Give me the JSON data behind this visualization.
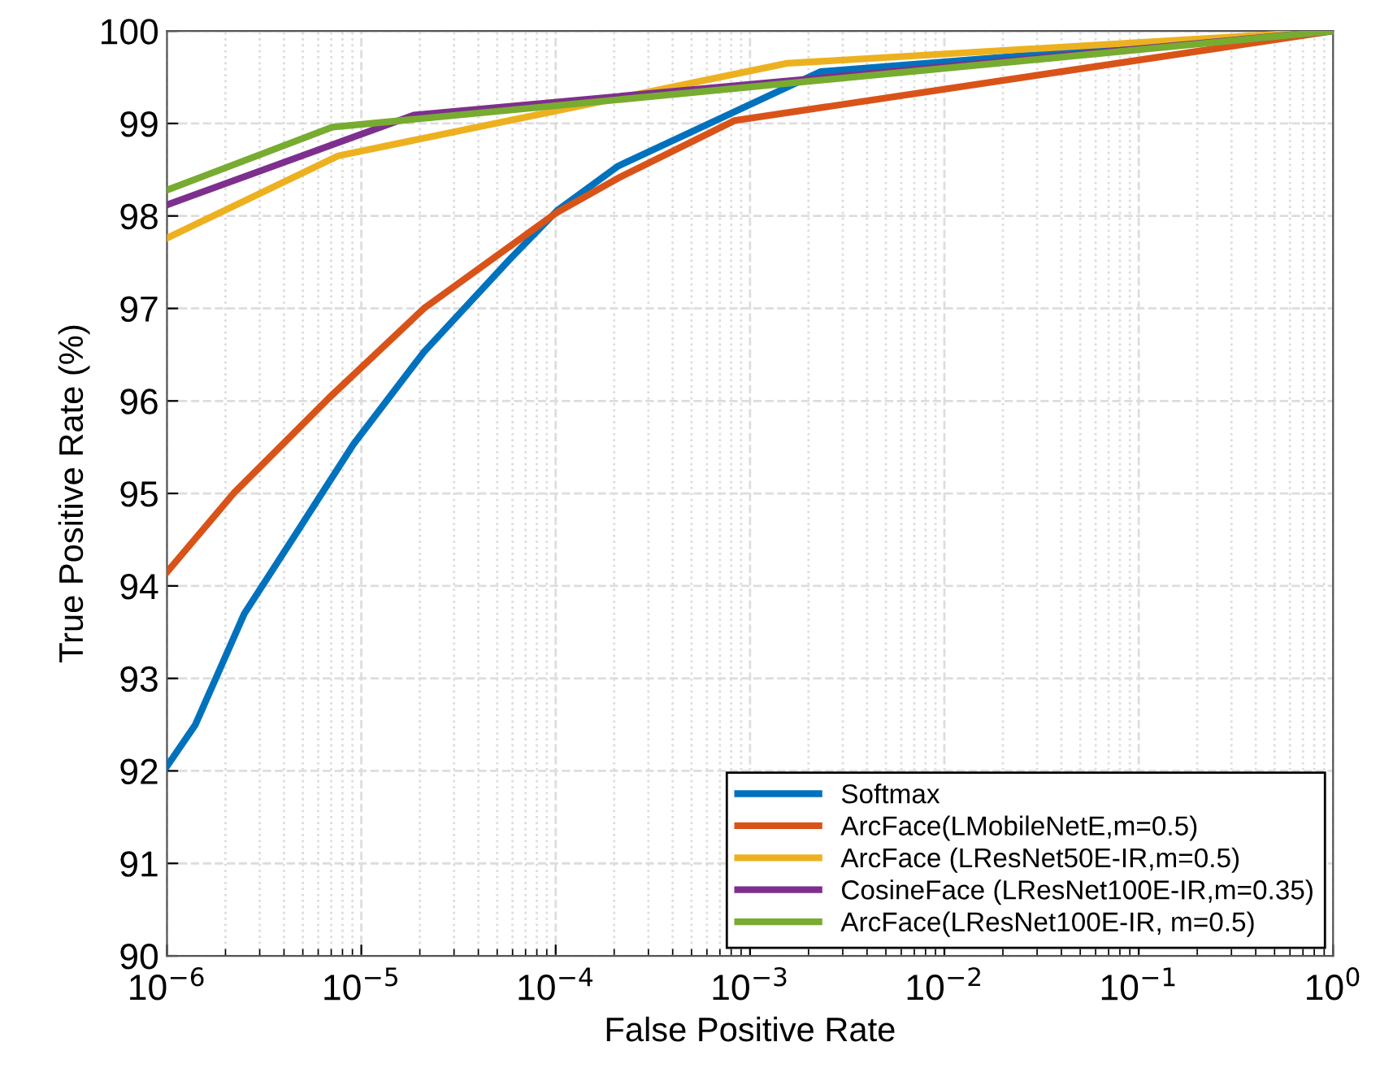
{
  "chart_data": {
    "type": "line",
    "xlabel": "False Positive Rate",
    "ylabel": "True Positive Rate (%)",
    "log": "x",
    "xlim": [
      1e-06,
      1
    ],
    "ylim": [
      90,
      100
    ],
    "xticks": [
      {
        "value": 1e-06,
        "label": "10$^{−6}$"
      },
      {
        "value": 1e-05,
        "label": "10$^{−5}$"
      },
      {
        "value": 0.0001,
        "label": "10$^{−4}$"
      },
      {
        "value": 0.001,
        "label": "10$^{−3}$"
      },
      {
        "value": 0.01,
        "label": "10$^{−2}$"
      },
      {
        "value": 0.1,
        "label": "10$^{−1}$"
      },
      {
        "value": 1,
        "label": "10$^{0}$"
      }
    ],
    "yticks": [
      90,
      91,
      92,
      93,
      94,
      95,
      96,
      97,
      98,
      99,
      100
    ],
    "grid": true,
    "legend": "bottom right",
    "line_style": "solid",
    "marker": "none",
    "series": [
      {
        "name": "Softmax",
        "color": "#0072bd",
        "x": [
          1e-06,
          1.4e-06,
          2.5e-06,
          4.5e-06,
          9.1e-06,
          2.1e-05,
          5.8e-05,
          0.000102,
          0.00021,
          0.0023,
          1
        ],
        "values": [
          92.05,
          92.5,
          93.7,
          94.53,
          95.53,
          96.53,
          97.53,
          98.06,
          98.54,
          99.56,
          100
        ]
      },
      {
        "name": "ArcFace(LMobileNetE,m=0.5)",
        "color": "#d95319",
        "x": [
          1e-06,
          2.2e-06,
          6.8e-06,
          2.1e-05,
          0.0001,
          0.00021,
          0.00083,
          1
        ],
        "values": [
          94.15,
          95.0,
          96.03,
          97.0,
          98.03,
          98.41,
          99.03,
          100
        ]
      },
      {
        "name": "ArcFace (LResNet50E-IR,m=0.5)",
        "color": "#edb120",
        "x": [
          1e-06,
          7.6e-06,
          0.00155,
          1
        ],
        "values": [
          97.76,
          98.65,
          99.65,
          100
        ]
      },
      {
        "name": "CosineFace (LResNet100E-IR,m=0.35)",
        "color": "#7e2f8e",
        "x": [
          1e-06,
          1.86e-05,
          1
        ],
        "values": [
          98.12,
          99.09,
          100
        ]
      },
      {
        "name": "ArcFace(LResNet100E-IR, m=0.5)",
        "color": "#77ac30",
        "x": [
          1e-06,
          7.1e-06,
          1
        ],
        "values": [
          98.28,
          98.96,
          100
        ]
      }
    ]
  }
}
